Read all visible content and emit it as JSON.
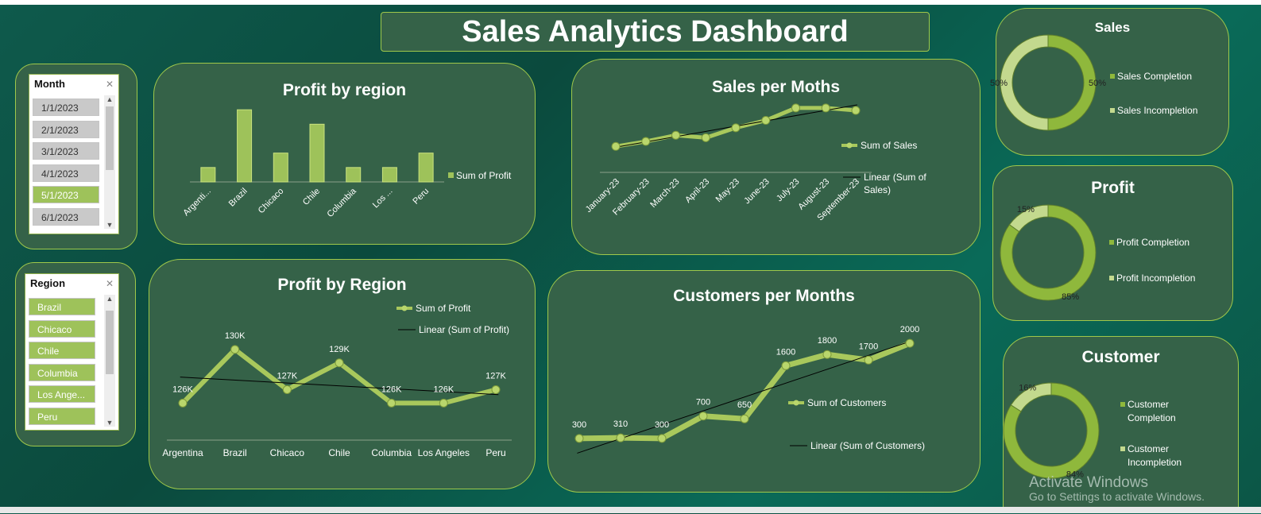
{
  "dashboard_title": "Sales Analytics  Dashboard",
  "colors": {
    "accent": "#9ec25a",
    "panel": "#356248",
    "line": "#a9c85c",
    "trend": "#000000"
  },
  "slicer_month": {
    "header": "Month",
    "items": [
      "1/1/2023",
      "2/1/2023",
      "3/1/2023",
      "4/1/2023",
      "5/1/2023",
      "6/1/2023"
    ],
    "selected": [
      false,
      false,
      false,
      false,
      true,
      false
    ]
  },
  "slicer_region": {
    "header": "Region",
    "items": [
      "Brazil",
      "Chicaco",
      "Chile",
      "Columbia",
      "Los Ange...",
      "Peru"
    ]
  },
  "chart_data": [
    {
      "type": "bar",
      "title": "Profit by region",
      "categories": [
        "Argenti...",
        "Brazil",
        "Chicaco",
        "Chile",
        "Columbia",
        "Los ...",
        "Peru"
      ],
      "series": [
        {
          "name": "Sum of Profit",
          "values": [
            126,
            130,
            127,
            129,
            126,
            126,
            127
          ]
        }
      ],
      "ylim": [
        125,
        131
      ]
    },
    {
      "type": "line",
      "title": "Sales per Moths",
      "categories": [
        "January-23",
        "February-23",
        "March-23",
        "April-23",
        "May-23",
        "June-23",
        "July-23",
        "August-23",
        "September-23"
      ],
      "series": [
        {
          "name": "Sum of Sales",
          "values": [
            12,
            16,
            21,
            19,
            27,
            33,
            43,
            43,
            41
          ]
        }
      ],
      "trend_label": "Linear (Sum of Sales)",
      "ylim": [
        0,
        50
      ]
    },
    {
      "type": "line",
      "title": "Profit by Region",
      "categories": [
        "Argentina",
        "Brazil",
        "Chicaco",
        "Chile",
        "Columbia",
        "Los Angeles",
        "Peru"
      ],
      "series": [
        {
          "name": "Sum of Profit",
          "values": [
            126,
            130,
            127,
            129,
            126,
            126,
            127
          ]
        }
      ],
      "data_labels": [
        "126K",
        "130K",
        "127K",
        "129K",
        "126K",
        "126K",
        "127K"
      ],
      "trend_label": "Linear (Sum of Profit)",
      "ylim": [
        123,
        131
      ]
    },
    {
      "type": "line",
      "title": "Customers per Months",
      "series": [
        {
          "name": "Sum of Customers",
          "values": [
            300,
            310,
            300,
            700,
            650,
            1600,
            1800,
            1700,
            2000
          ]
        }
      ],
      "data_labels": [
        "300",
        "310",
        "300",
        "700",
        "650",
        "1600",
        "1800",
        "1700",
        "2000"
      ],
      "trend_label": "Linear (Sum of Customers)",
      "ylim": [
        0,
        2300
      ]
    },
    {
      "type": "pie",
      "title": "Sales",
      "labels": [
        "Sales Completion",
        "Sales Incompletion"
      ],
      "values": [
        50,
        50
      ],
      "value_labels": [
        "50%",
        "50%"
      ]
    },
    {
      "type": "pie",
      "title": "Profit",
      "labels": [
        "Profit Completion",
        "Profit Incompletion"
      ],
      "values": [
        85,
        15
      ],
      "value_labels": [
        "85%",
        "15%"
      ]
    },
    {
      "type": "pie",
      "title": "Customer",
      "labels": [
        "Customer Completion",
        "Customer Incompletion"
      ],
      "values": [
        84,
        16
      ],
      "value_labels": [
        "84%",
        "16%"
      ]
    }
  ],
  "watermark": {
    "line1": "Activate Windows",
    "line2": "Go to Settings to activate Windows."
  }
}
